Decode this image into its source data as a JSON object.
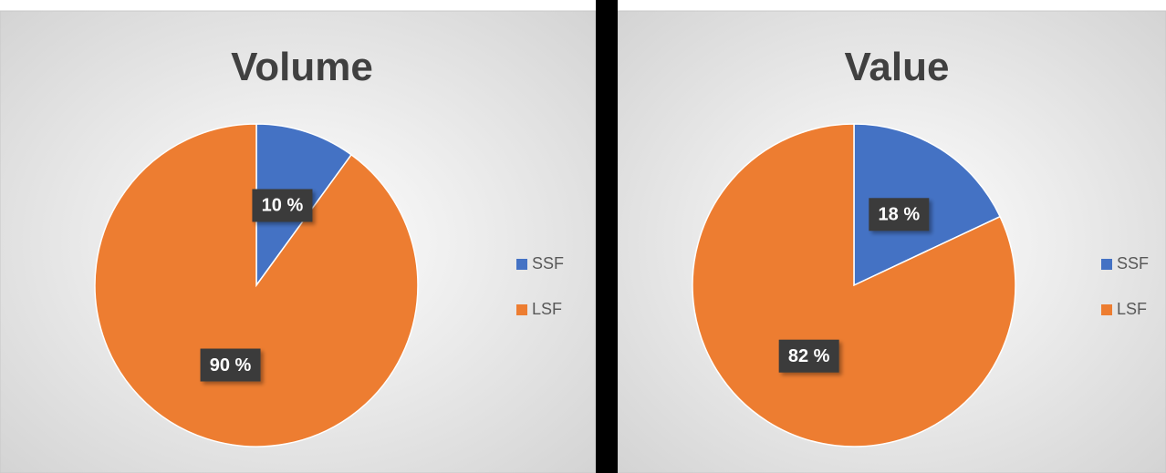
{
  "chart_data": [
    {
      "type": "pie",
      "title": "Volume",
      "categories": [
        "SSF",
        "LSF"
      ],
      "values": [
        10,
        90
      ],
      "value_labels": [
        "10 %",
        "90 %"
      ],
      "colors": [
        "#4472c4",
        "#ed7d31"
      ]
    },
    {
      "type": "pie",
      "title": "Value",
      "categories": [
        "SSF",
        "LSF"
      ],
      "values": [
        18,
        82
      ],
      "value_labels": [
        "18 %",
        "82 %"
      ],
      "colors": [
        "#4472c4",
        "#ed7d31"
      ]
    }
  ]
}
